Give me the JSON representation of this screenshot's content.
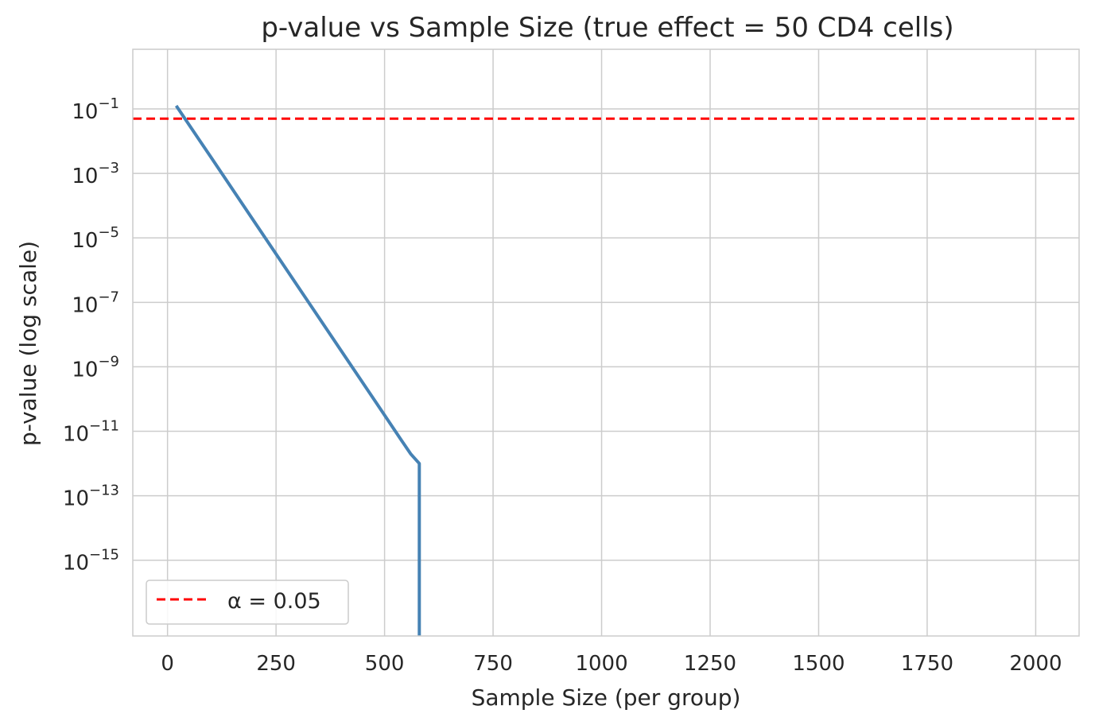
{
  "chart_data": {
    "type": "line",
    "title": "p-value vs Sample Size (true effect = 50 CD4 cells)",
    "xlabel": "Sample Size (per group)",
    "ylabel": "p-value (log scale)",
    "x_scale": "linear",
    "y_scale": "log",
    "xlim": [
      -80,
      2100
    ],
    "ylim_log10": [
      -17.35,
      0.85
    ],
    "x_ticks": [
      0,
      250,
      500,
      750,
      1000,
      1250,
      1500,
      1750,
      2000
    ],
    "x_tick_labels": [
      "0",
      "250",
      "500",
      "750",
      "1000",
      "1250",
      "1500",
      "1750",
      "2000"
    ],
    "y_ticks_log10": [
      -1,
      -3,
      -5,
      -7,
      -9,
      -11,
      -13,
      -15
    ],
    "y_tick_base": "10",
    "y_tick_exponents": [
      "−1",
      "−3",
      "−5",
      "−7",
      "−9",
      "−11",
      "−13",
      "−15"
    ],
    "grid": true,
    "legend_position": "lower-left",
    "series": [
      {
        "name": "p-value",
        "color": "#4682b4",
        "x": [
          20,
          100,
          200,
          300,
          400,
          500,
          540,
          560,
          580,
          580
        ],
        "log10_p": [
          -0.9,
          -2.5,
          -4.5,
          -6.5,
          -8.5,
          -10.5,
          -11.3,
          -11.7,
          -12.0,
          -17.5
        ]
      }
    ],
    "reference_lines": [
      {
        "type": "horizontal",
        "y": 0.05,
        "log10_y": -1.30103,
        "color": "#ff0000",
        "style": "dashed",
        "label": "α = 0.05"
      }
    ]
  }
}
